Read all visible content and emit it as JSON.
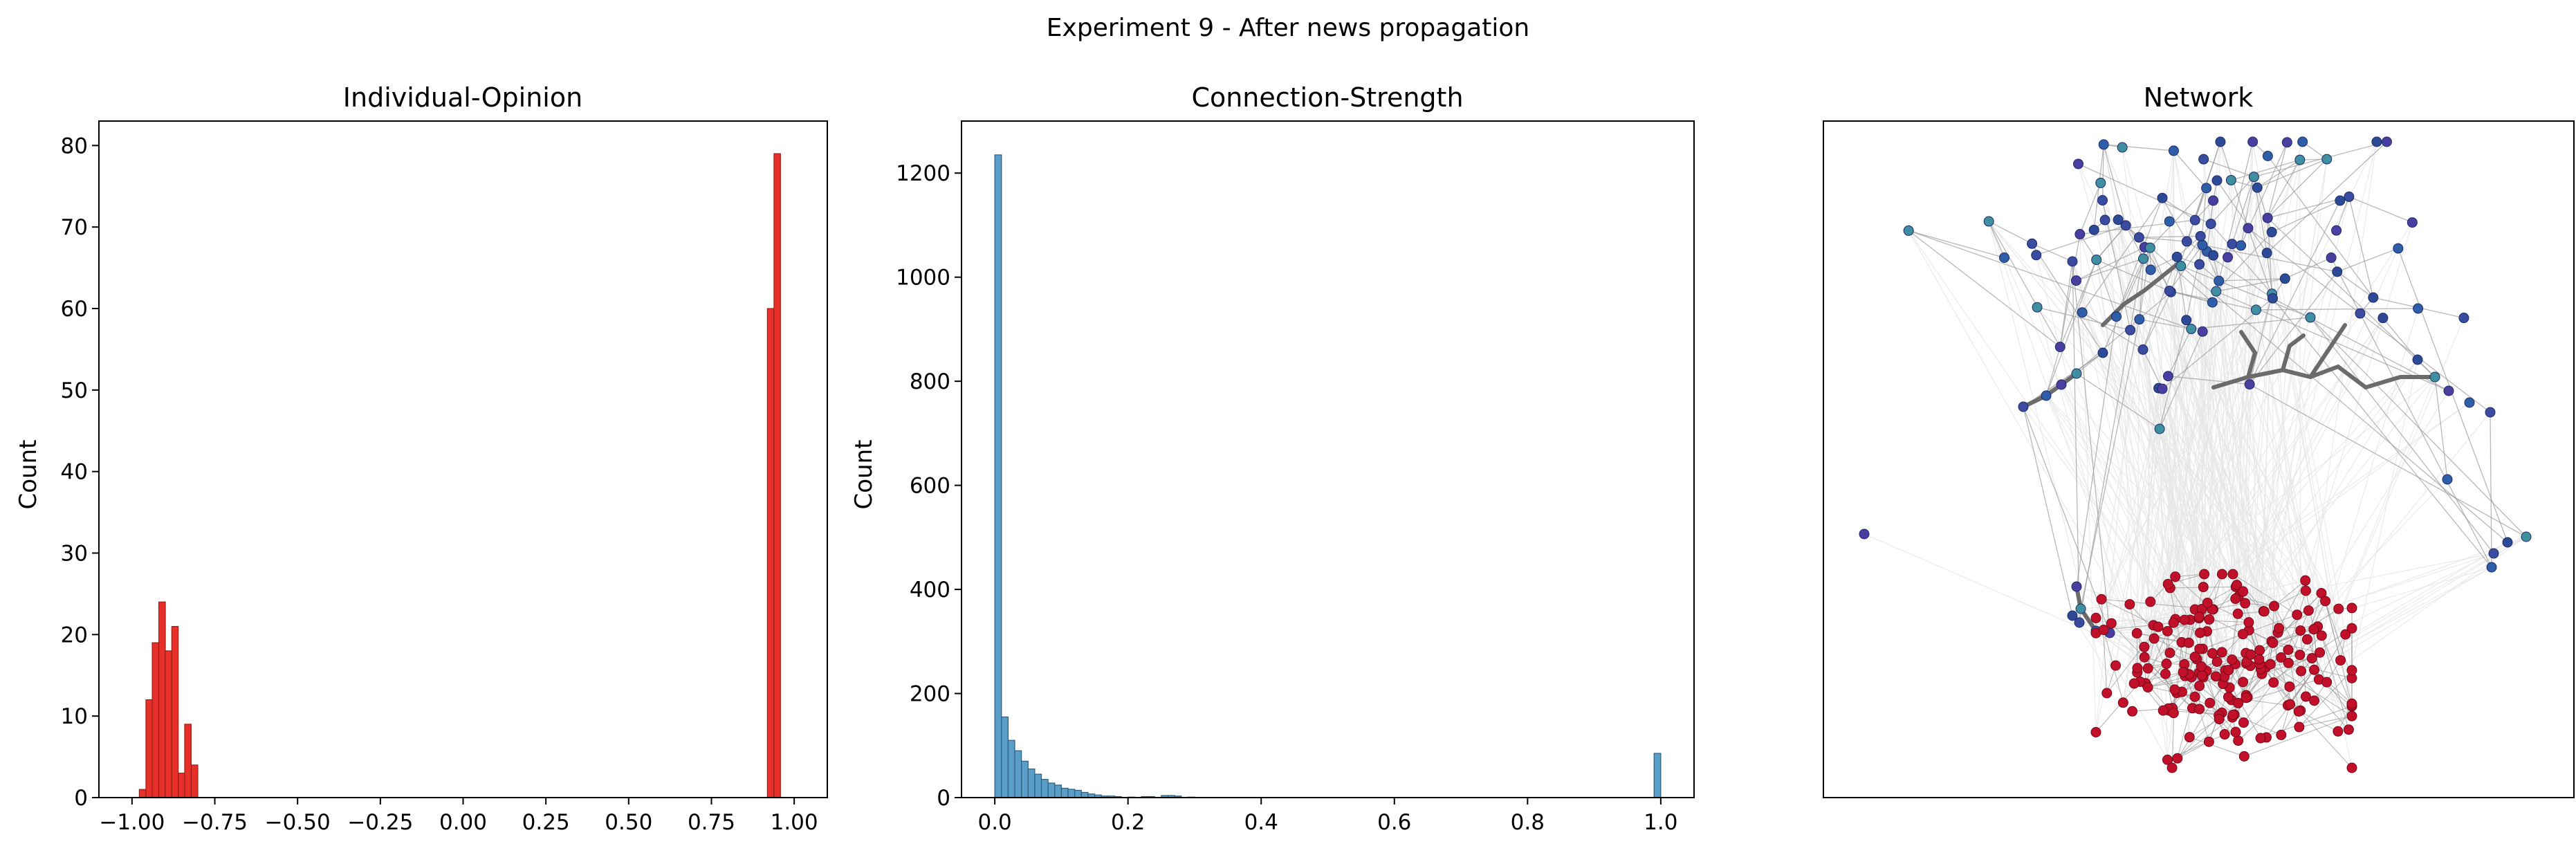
{
  "figure": {
    "suptitle": "Experiment 9 - After news propagation"
  },
  "chart_data": [
    {
      "type": "bar",
      "title": "Individual-Opinion",
      "xlabel": "",
      "ylabel": "Count",
      "xlim": [
        -1.1,
        1.1
      ],
      "ylim": [
        0,
        83
      ],
      "xticks": [
        -1.0,
        -0.75,
        -0.5,
        -0.25,
        0.0,
        0.25,
        0.5,
        0.75,
        1.0
      ],
      "xtick_labels": [
        "−1.00",
        "−0.75",
        "−0.50",
        "−0.25",
        "0.00",
        "0.25",
        "0.50",
        "0.75",
        "1.00"
      ],
      "yticks": [
        0,
        10,
        20,
        30,
        40,
        50,
        60,
        70,
        80
      ],
      "ytick_labels": [
        "0",
        "10",
        "20",
        "30",
        "40",
        "50",
        "60",
        "70",
        "80"
      ],
      "bin_width": 0.01958,
      "bins": [
        {
          "x0": -0.978,
          "count": 1
        },
        {
          "x0": -0.958,
          "count": 12
        },
        {
          "x0": -0.939,
          "count": 19
        },
        {
          "x0": -0.919,
          "count": 24
        },
        {
          "x0": -0.9,
          "count": 18
        },
        {
          "x0": -0.88,
          "count": 21
        },
        {
          "x0": -0.86,
          "count": 3
        },
        {
          "x0": -0.841,
          "count": 9
        },
        {
          "x0": -0.821,
          "count": 4
        },
        {
          "x0": 0.919,
          "count": 60
        },
        {
          "x0": 0.939,
          "count": 79
        }
      ],
      "color": "#e8302a",
      "edge_color": "#a01c16"
    },
    {
      "type": "bar",
      "title": "Connection-Strength",
      "xlabel": "",
      "ylabel": "Count",
      "xlim": [
        -0.05,
        1.05
      ],
      "ylim": [
        0,
        1300
      ],
      "xticks": [
        0.0,
        0.2,
        0.4,
        0.6,
        0.8,
        1.0
      ],
      "xtick_labels": [
        "0.0",
        "0.2",
        "0.4",
        "0.6",
        "0.8",
        "1.0"
      ],
      "yticks": [
        0,
        200,
        400,
        600,
        800,
        1000,
        1200
      ],
      "ytick_labels": [
        "0",
        "200",
        "400",
        "600",
        "800",
        "1000",
        "1200"
      ],
      "bin_width": 0.01,
      "bins": [
        {
          "x0": 0.0,
          "count": 1235
        },
        {
          "x0": 0.01,
          "count": 155
        },
        {
          "x0": 0.02,
          "count": 110
        },
        {
          "x0": 0.03,
          "count": 90
        },
        {
          "x0": 0.04,
          "count": 70
        },
        {
          "x0": 0.05,
          "count": 55
        },
        {
          "x0": 0.06,
          "count": 45
        },
        {
          "x0": 0.07,
          "count": 35
        },
        {
          "x0": 0.08,
          "count": 28
        },
        {
          "x0": 0.09,
          "count": 24
        },
        {
          "x0": 0.1,
          "count": 18
        },
        {
          "x0": 0.11,
          "count": 16
        },
        {
          "x0": 0.12,
          "count": 14
        },
        {
          "x0": 0.13,
          "count": 10
        },
        {
          "x0": 0.14,
          "count": 7
        },
        {
          "x0": 0.15,
          "count": 5
        },
        {
          "x0": 0.16,
          "count": 3
        },
        {
          "x0": 0.17,
          "count": 3
        },
        {
          "x0": 0.18,
          "count": 2
        },
        {
          "x0": 0.2,
          "count": 1
        },
        {
          "x0": 0.22,
          "count": 2
        },
        {
          "x0": 0.23,
          "count": 2
        },
        {
          "x0": 0.25,
          "count": 4
        },
        {
          "x0": 0.26,
          "count": 4
        },
        {
          "x0": 0.27,
          "count": 3
        },
        {
          "x0": 0.29,
          "count": 1
        },
        {
          "x0": 0.99,
          "count": 85
        }
      ],
      "color": "#5a9ec8",
      "edge_color": "#2c5f82"
    },
    {
      "type": "network",
      "title": "Network",
      "xlabel": "",
      "ylabel": "",
      "node_colors": {
        "cluster_top": [
          "#3a4ba0",
          "#2f5ea8",
          "#4a3fa0",
          "#3f8fa0",
          "#2c4a96"
        ],
        "cluster_bottom": "#c0102a"
      },
      "edge_color": "#9a9a9a",
      "heavy_edge_color": "#6b6b6b",
      "background_edge_color": "#e6e6e6"
    }
  ]
}
